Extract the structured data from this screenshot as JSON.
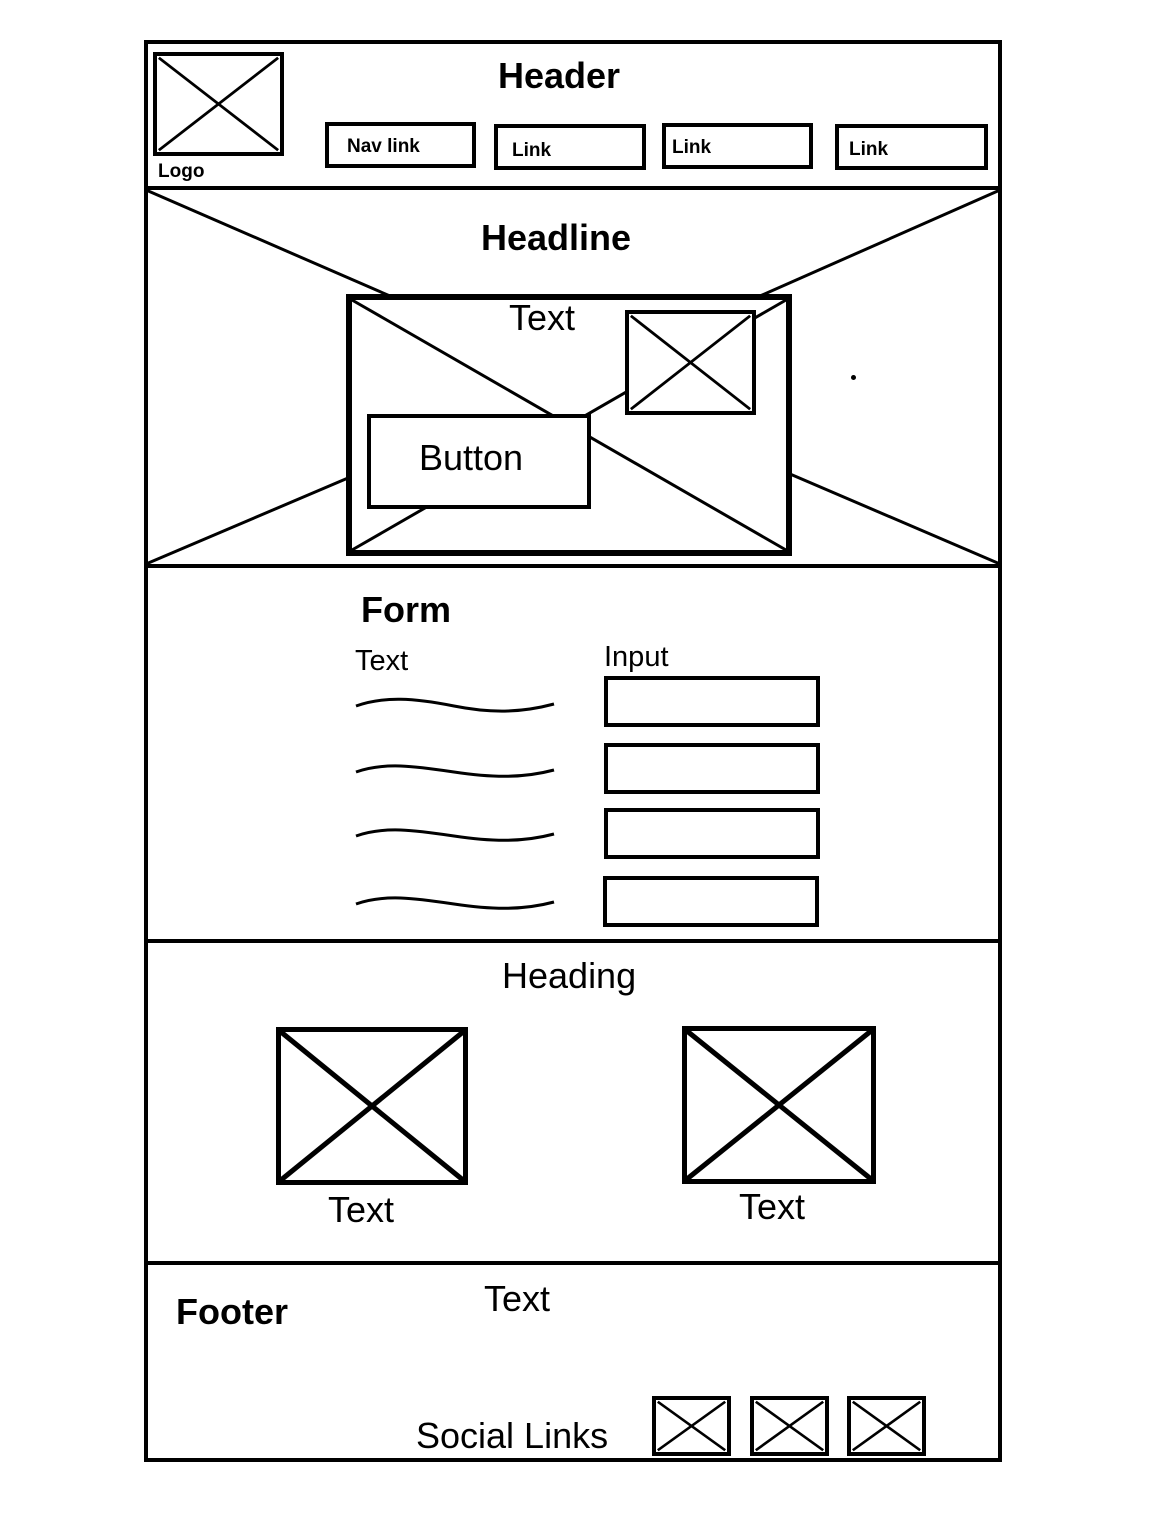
{
  "header": {
    "title": "Header",
    "logo_label": "Logo",
    "nav": [
      "Nav link",
      "Link",
      "Link",
      "Link"
    ]
  },
  "hero": {
    "headline": "Headline",
    "text": "Text",
    "button_label": "Button"
  },
  "form": {
    "title": "Form",
    "text_label": "Text",
    "input_label": "Input"
  },
  "gallery": {
    "heading": "Heading",
    "captions": [
      "Text",
      "Text"
    ]
  },
  "footer": {
    "title": "Footer",
    "text": "Text",
    "social_label": "Social Links"
  }
}
